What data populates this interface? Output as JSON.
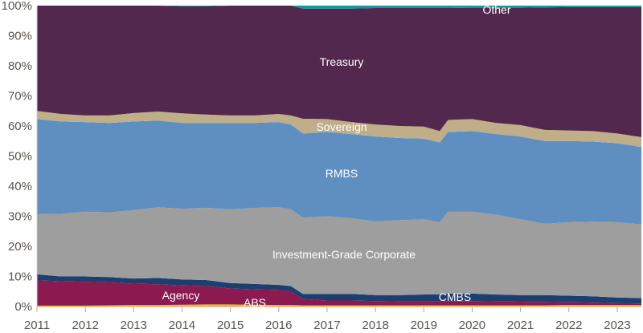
{
  "chart_data": {
    "type": "area",
    "stacked": true,
    "title": "",
    "xlabel": "",
    "ylabel": "",
    "xlim": [
      2011,
      2023.5
    ],
    "ylim": [
      0,
      100
    ],
    "y_unit": "%",
    "grid": false,
    "x_ticks": [
      "2011",
      "2012",
      "2013",
      "2014",
      "2015",
      "2016",
      "2017",
      "2018",
      "2019",
      "2020",
      "2021",
      "2022",
      "2023"
    ],
    "y_ticks": [
      "0%",
      "10%",
      "20%",
      "30%",
      "40%",
      "50%",
      "60%",
      "70%",
      "80%",
      "90%",
      "100%"
    ],
    "x": [
      2011,
      2011.5,
      2012,
      2012.5,
      2013,
      2013.5,
      2014,
      2014.5,
      2015,
      2015.5,
      2016,
      2016.25,
      2016.5,
      2017,
      2017.5,
      2018,
      2018.5,
      2019,
      2019.33,
      2019.5,
      2020,
      2020.5,
      2021,
      2021.5,
      2022,
      2022.5,
      2023,
      2023.5
    ],
    "series": [
      {
        "name": "ABS",
        "color": "#e8b84a",
        "values": [
          0.3,
          0.3,
          0.3,
          0.4,
          0.5,
          0.5,
          0.6,
          0.7,
          0.7,
          0.6,
          0.5,
          0.5,
          0.4,
          0.4,
          0.4,
          0.4,
          0.4,
          0.4,
          0.4,
          0.4,
          0.4,
          0.4,
          0.4,
          0.4,
          0.5,
          0.5,
          0.5,
          0.5
        ]
      },
      {
        "name": "Agency",
        "color": "#8a1a50",
        "values": [
          8.4,
          8.1,
          7.9,
          7.6,
          7.1,
          6.9,
          6.4,
          6.1,
          5.3,
          5.1,
          5.0,
          4.5,
          2.1,
          1.6,
          1.6,
          1.4,
          1.3,
          1.3,
          1.3,
          1.4,
          1.4,
          1.3,
          1.2,
          1.1,
          0.9,
          0.8,
          0.6,
          0.5
        ]
      },
      {
        "name": "CMBS",
        "color": "#1e3f6e",
        "values": [
          2.0,
          1.6,
          1.8,
          1.8,
          1.7,
          2.1,
          2.0,
          2.0,
          1.8,
          1.8,
          1.7,
          1.8,
          1.7,
          2.2,
          2.2,
          2.0,
          2.1,
          2.3,
          2.3,
          2.5,
          2.5,
          2.3,
          2.2,
          2.3,
          2.2,
          2.1,
          1.9,
          1.8
        ]
      },
      {
        "name": "Investment-Grade Corporate",
        "color": "#9e9e9e",
        "values": [
          20.0,
          20.8,
          21.5,
          21.5,
          22.7,
          23.5,
          23.5,
          24.0,
          24.5,
          25.3,
          25.8,
          25.5,
          25.3,
          25.8,
          25.1,
          24.5,
          24.9,
          25.0,
          24.0,
          27.2,
          27.2,
          26.5,
          25.2,
          23.7,
          24.4,
          24.8,
          25.0,
          24.5
        ]
      },
      {
        "name": "RMBS",
        "color": "#5e8fc0",
        "values": [
          31.6,
          30.7,
          29.8,
          29.7,
          29.5,
          28.8,
          28.5,
          28.2,
          28.7,
          28.2,
          28.3,
          28.2,
          28.0,
          28.0,
          28.0,
          28.2,
          27.3,
          26.8,
          26.5,
          26.5,
          26.8,
          26.8,
          27.5,
          27.5,
          27.0,
          26.6,
          26.3,
          25.7
        ]
      },
      {
        "name": "Sovereign",
        "color": "#bfae88",
        "values": [
          2.7,
          2.5,
          2.2,
          2.5,
          2.8,
          3.0,
          3.2,
          2.8,
          2.5,
          2.5,
          2.7,
          3.0,
          4.9,
          4.3,
          4.0,
          4.0,
          4.0,
          4.0,
          3.8,
          4.0,
          4.0,
          3.7,
          3.8,
          3.7,
          3.5,
          3.5,
          3.2,
          3.3
        ]
      },
      {
        "name": "Treasury",
        "color": "#53284f",
        "values": [
          35.0,
          36.0,
          36.5,
          36.5,
          35.7,
          35.2,
          35.6,
          36.0,
          36.5,
          36.5,
          36.0,
          36.5,
          36.6,
          36.7,
          37.7,
          38.7,
          39.2,
          39.4,
          40.9,
          37.2,
          37.0,
          38.3,
          39.0,
          40.7,
          41.0,
          41.2,
          42.0,
          43.2
        ]
      },
      {
        "name": "Other",
        "color": "#0e9a9a",
        "values": [
          0,
          0,
          0,
          0,
          0,
          0,
          0.2,
          0.2,
          0,
          0,
          0,
          0,
          1.0,
          1.0,
          1.0,
          0.8,
          0.8,
          0.8,
          0.8,
          0.8,
          0.7,
          0.7,
          0.7,
          0.6,
          0.5,
          0.5,
          0.5,
          0.5
        ]
      }
    ]
  }
}
